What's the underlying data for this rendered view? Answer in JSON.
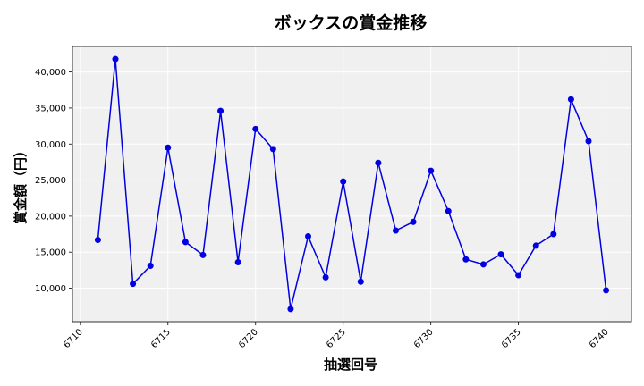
{
  "chart_data": {
    "type": "line",
    "title": "ボックスの賞金推移",
    "xlabel": "抽選回号",
    "ylabel": "賞金額（円）",
    "x": [
      6711,
      6712,
      6713,
      6714,
      6715,
      6716,
      6717,
      6718,
      6719,
      6720,
      6721,
      6722,
      6723,
      6724,
      6725,
      6726,
      6727,
      6728,
      6729,
      6730,
      6731,
      6732,
      6733,
      6734,
      6735,
      6736,
      6737,
      6738,
      6739,
      6740
    ],
    "series": [
      {
        "values": [
          16700,
          41800,
          10600,
          13100,
          29500,
          16400,
          14600,
          34600,
          13600,
          32100,
          29300,
          7100,
          17200,
          11500,
          24800,
          10900,
          27400,
          18000,
          19200,
          26300,
          20700,
          14000,
          13300,
          14700,
          11800,
          15900,
          17500,
          36200,
          30400,
          9700
        ],
        "color": "#0000e0"
      }
    ],
    "xlim": [
      6709.55,
      6741.45
    ],
    "ylim": [
      5350,
      43550
    ],
    "xticks": [
      6710,
      6715,
      6720,
      6725,
      6730,
      6735,
      6740
    ],
    "xtick_labels": [
      "6710",
      "6715",
      "6720",
      "6725",
      "6730",
      "6735",
      "6740"
    ],
    "yticks": [
      10000,
      15000,
      20000,
      25000,
      30000,
      35000,
      40000
    ],
    "ytick_labels": [
      "10,000",
      "15,000",
      "20,000",
      "25,000",
      "30,000",
      "35,000",
      "40,000"
    ],
    "grid": true,
    "background": "#f0f0f0",
    "grid_color": "#ffffff"
  }
}
